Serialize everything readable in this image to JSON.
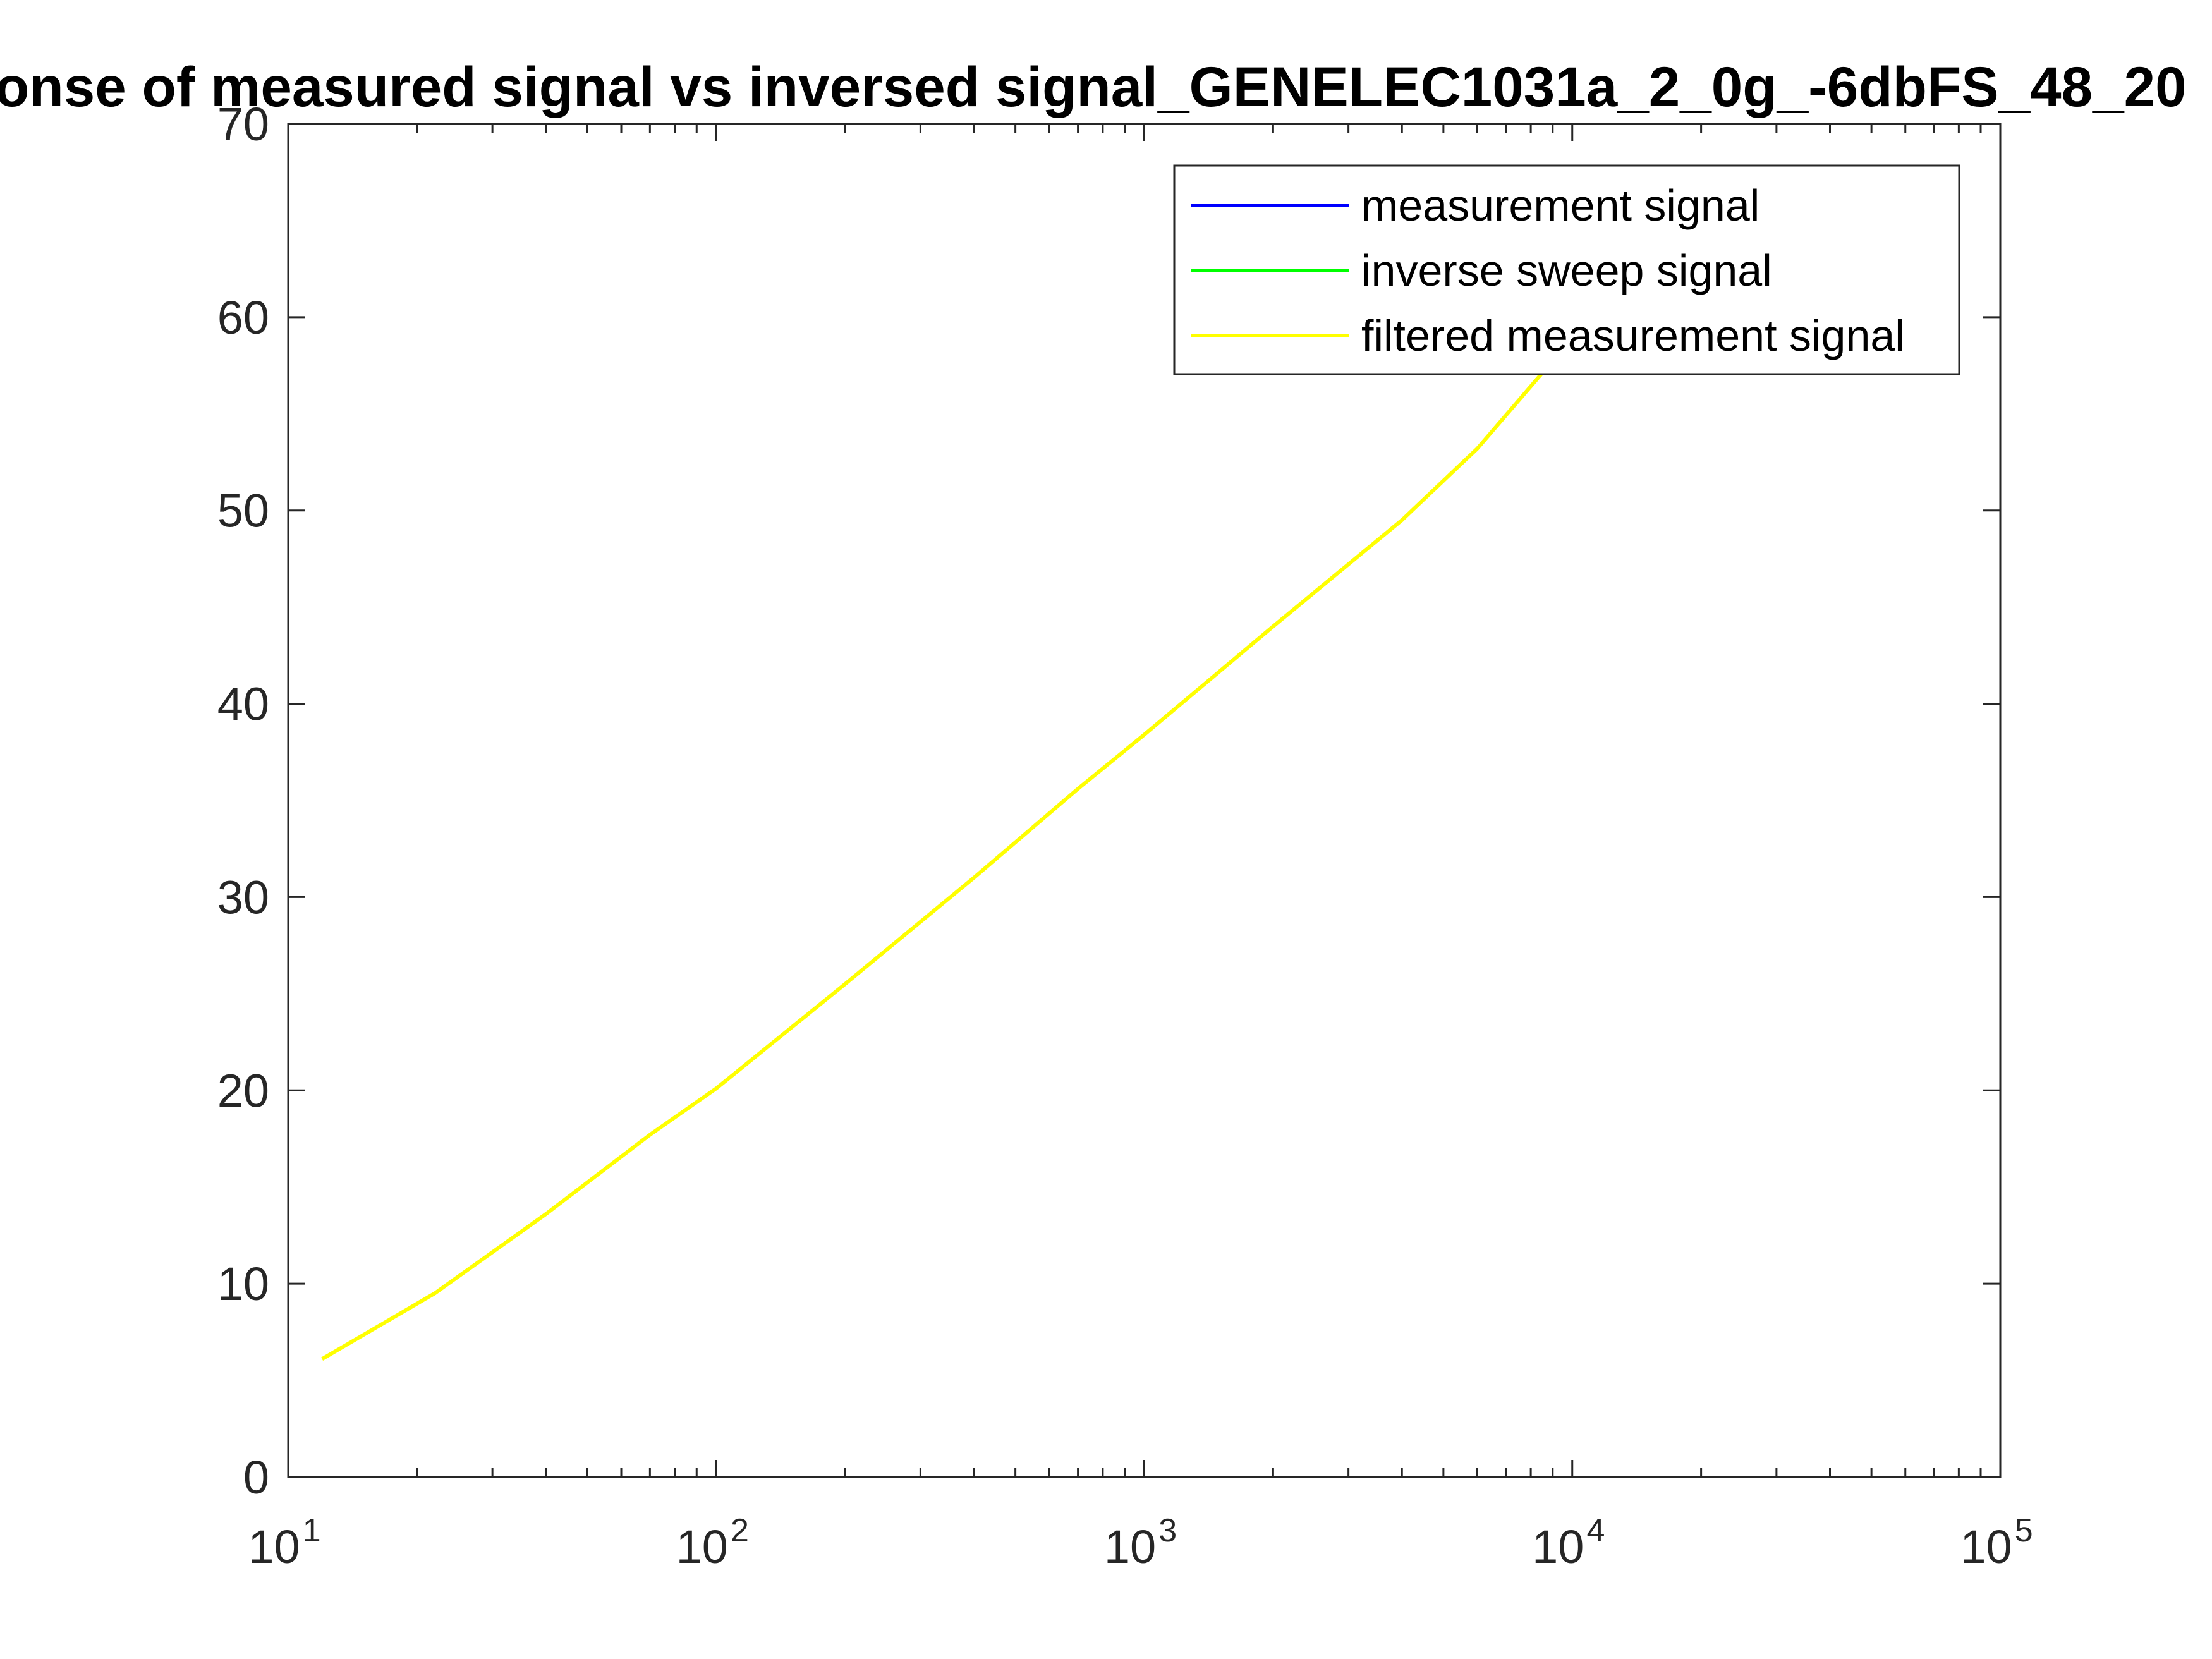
{
  "chart_data": {
    "type": "line",
    "title": "onse of measured signal vs inversed signal_GENELEC1031a_2_0g_-6dbFS_48_20",
    "xlabel": "",
    "ylabel": "",
    "xscale": "log",
    "xlim": [
      10,
      100000
    ],
    "ylim": [
      0,
      70
    ],
    "x_ticks": [
      {
        "value": 10,
        "base": "10",
        "exp": "1"
      },
      {
        "value": 100,
        "base": "10",
        "exp": "2"
      },
      {
        "value": 1000,
        "base": "10",
        "exp": "3"
      },
      {
        "value": 10000,
        "base": "10",
        "exp": "4"
      },
      {
        "value": 100000,
        "base": "10",
        "exp": "5"
      }
    ],
    "y_ticks": [
      0,
      10,
      20,
      30,
      40,
      50,
      60,
      70
    ],
    "grid": false,
    "legend_position": "top-right",
    "series": [
      {
        "name": "measurement signal",
        "color": "#0000ff",
        "x": [],
        "y": []
      },
      {
        "name": "inverse sweep signal",
        "color": "#00ff00",
        "x": [],
        "y": []
      },
      {
        "name": "filtered measurement signal",
        "color": "#ffff00",
        "x": [
          12,
          22,
          40,
          70,
          100,
          200,
          400,
          700,
          1000,
          2000,
          4000,
          6000,
          8500
        ],
        "y": [
          6.1,
          9.5,
          13.6,
          17.7,
          20.1,
          25.5,
          31.0,
          35.6,
          38.4,
          44.0,
          49.5,
          53.2,
          57.1
        ]
      }
    ]
  }
}
